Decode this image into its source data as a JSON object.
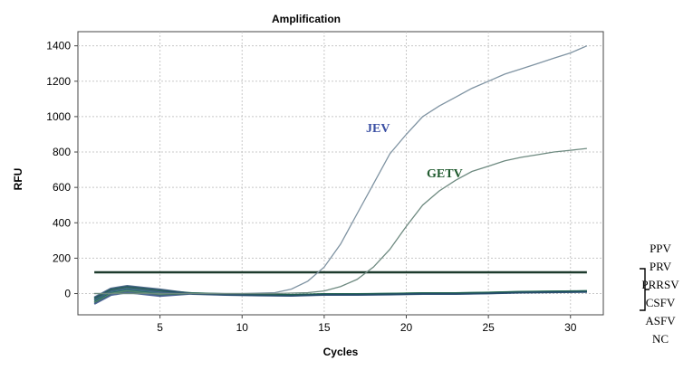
{
  "chart_data": {
    "type": "line",
    "title": "Amplification",
    "xlabel": "Cycles",
    "ylabel": "RFU",
    "xlim": [
      0,
      32
    ],
    "ylim": [
      -120,
      1480
    ],
    "xticks": [
      5,
      10,
      15,
      20,
      25,
      30
    ],
    "yticks": [
      0,
      200,
      400,
      600,
      800,
      1000,
      1200,
      1400
    ],
    "grid": true,
    "threshold": 120,
    "series": [
      {
        "name": "JEV",
        "color": "#7f93a2",
        "label_color": "#3a4fa3",
        "x": [
          1,
          5,
          10,
          12,
          13,
          14,
          15,
          16,
          17,
          18,
          19,
          20,
          21,
          22,
          23,
          24,
          25,
          26,
          27,
          28,
          29,
          30,
          31
        ],
        "y": [
          0,
          0,
          0,
          5,
          25,
          70,
          150,
          280,
          450,
          620,
          790,
          900,
          1000,
          1060,
          1110,
          1160,
          1200,
          1240,
          1270,
          1300,
          1330,
          1360,
          1400
        ]
      },
      {
        "name": "GETV",
        "color": "#6e8a80",
        "label_color": "#1f5a2e",
        "x": [
          1,
          5,
          10,
          12,
          14,
          15,
          16,
          17,
          18,
          19,
          20,
          21,
          22,
          23,
          24,
          25,
          26,
          27,
          28,
          29,
          30,
          31
        ],
        "y": [
          0,
          0,
          0,
          0,
          5,
          15,
          40,
          80,
          150,
          250,
          380,
          500,
          580,
          640,
          690,
          720,
          750,
          770,
          785,
          800,
          810,
          820
        ]
      }
    ],
    "negative_series": {
      "names": [
        "PPV",
        "PRV",
        "PRRSV",
        "CSFV",
        "ASFV",
        "NC"
      ],
      "colors": [
        "#1f3d7a",
        "#2e6b4f",
        "#0e5a5a",
        "#3b4f8f",
        "#1d6b3a",
        "#254a6e"
      ],
      "x": [
        1,
        2,
        3,
        4,
        5,
        7,
        9,
        11,
        13,
        15,
        17,
        19,
        21,
        23,
        25,
        27,
        29,
        31
      ],
      "y": [
        -40,
        10,
        25,
        15,
        5,
        0,
        -5,
        -8,
        -10,
        -5,
        -5,
        -3,
        0,
        0,
        3,
        8,
        10,
        12
      ]
    }
  }
}
